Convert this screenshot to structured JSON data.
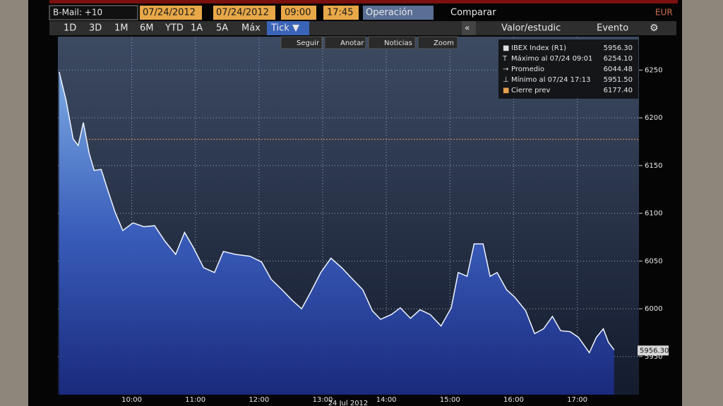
{
  "toolbar": {
    "mail": "B-Mail: +10",
    "date_from": "07/24/2012",
    "date_to": "07/24/2012",
    "time_from": "09:00",
    "time_to": "17:45",
    "mode": "Operación",
    "compare": "Comparar",
    "currency": "EUR",
    "ranges": [
      "1D",
      "3D",
      "1M",
      "6M",
      "YTD",
      "1A",
      "5A",
      "Máx"
    ],
    "active_range": "Tick ▼",
    "collapse": "«",
    "study": "Valor/estudic",
    "event": "Evento",
    "tools": [
      "Seguir",
      "Anotar",
      "Noticias",
      "Zoom"
    ]
  },
  "chart_data": {
    "type": "area",
    "series": [
      {
        "name": "IBEX Index (R1)",
        "color": "#5a8fd8",
        "x": [
          8.86,
          8.97,
          9.08,
          9.16,
          9.24,
          9.33,
          9.41,
          9.52,
          9.63,
          9.74,
          9.86,
          10.02,
          10.19,
          10.36,
          10.52,
          10.69,
          10.83,
          10.97,
          11.13,
          11.3,
          11.44,
          11.63,
          11.86,
          12.04,
          12.19,
          12.36,
          12.52,
          12.67,
          12.8,
          12.97,
          13.13,
          13.3,
          13.47,
          13.63,
          13.78,
          13.91,
          14.08,
          14.22,
          14.38,
          14.53,
          14.69,
          14.86,
          15.02,
          15.13,
          15.27,
          15.38,
          15.52,
          15.63,
          15.74,
          15.89,
          16.02,
          16.19,
          16.33,
          16.47,
          16.61,
          16.74,
          16.89,
          17.02,
          17.19,
          17.3,
          17.41,
          17.49,
          17.58
        ],
        "values": [
          6248,
          6218,
          6178,
          6171,
          6195,
          6163,
          6145,
          6146,
          6123,
          6101,
          6082,
          6090,
          6086,
          6087,
          6071,
          6057,
          6080,
          6064,
          6043,
          6038,
          6060,
          6057,
          6055,
          6049,
          6031,
          6020,
          6009,
          6000,
          6016,
          6038,
          6053,
          6043,
          6031,
          6020,
          5998,
          5989,
          5994,
          6001,
          5990,
          5999,
          5994,
          5982,
          6001,
          6038,
          6034,
          6068,
          6068,
          6034,
          6038,
          6020,
          6012,
          5998,
          5974,
          5979,
          5992,
          5977,
          5976,
          5970,
          5954,
          5970,
          5979,
          5965,
          5957
        ]
      }
    ],
    "legend": [
      {
        "name": "IBEX Index (R1)",
        "value": 5956.3,
        "value_label": "5956.30"
      },
      {
        "name": "Máximo al 07/24 09:01",
        "value": 6254.1,
        "value_label": "6254.10"
      },
      {
        "name": "Promedio",
        "value": 6044.48,
        "value_label": "6044.48"
      },
      {
        "name": "Mínimo al 07/24 17:13",
        "value": 5951.5,
        "value_label": "5951.50"
      },
      {
        "name": "Cierre prev",
        "value": 6177.4,
        "value_label": "6177.40",
        "color": "#e8a050"
      }
    ],
    "xlim": [
      8.84,
      17.97
    ],
    "xticks": [
      {
        "value": 10,
        "label": "10:00"
      },
      {
        "value": 11,
        "label": "11:00"
      },
      {
        "value": 12,
        "label": "12:00"
      },
      {
        "value": 13,
        "label": "13:00"
      },
      {
        "value": 14,
        "label": "14:00"
      },
      {
        "value": 15,
        "label": "15:00"
      },
      {
        "value": 16,
        "label": "16:00"
      },
      {
        "value": 17,
        "label": "17:00"
      }
    ],
    "xlabel": "24 Jul 2012",
    "ylim": [
      5910,
      6285
    ],
    "yticks": [
      5950,
      6000,
      6050,
      6100,
      6150,
      6200,
      6250
    ],
    "grid": true
  }
}
